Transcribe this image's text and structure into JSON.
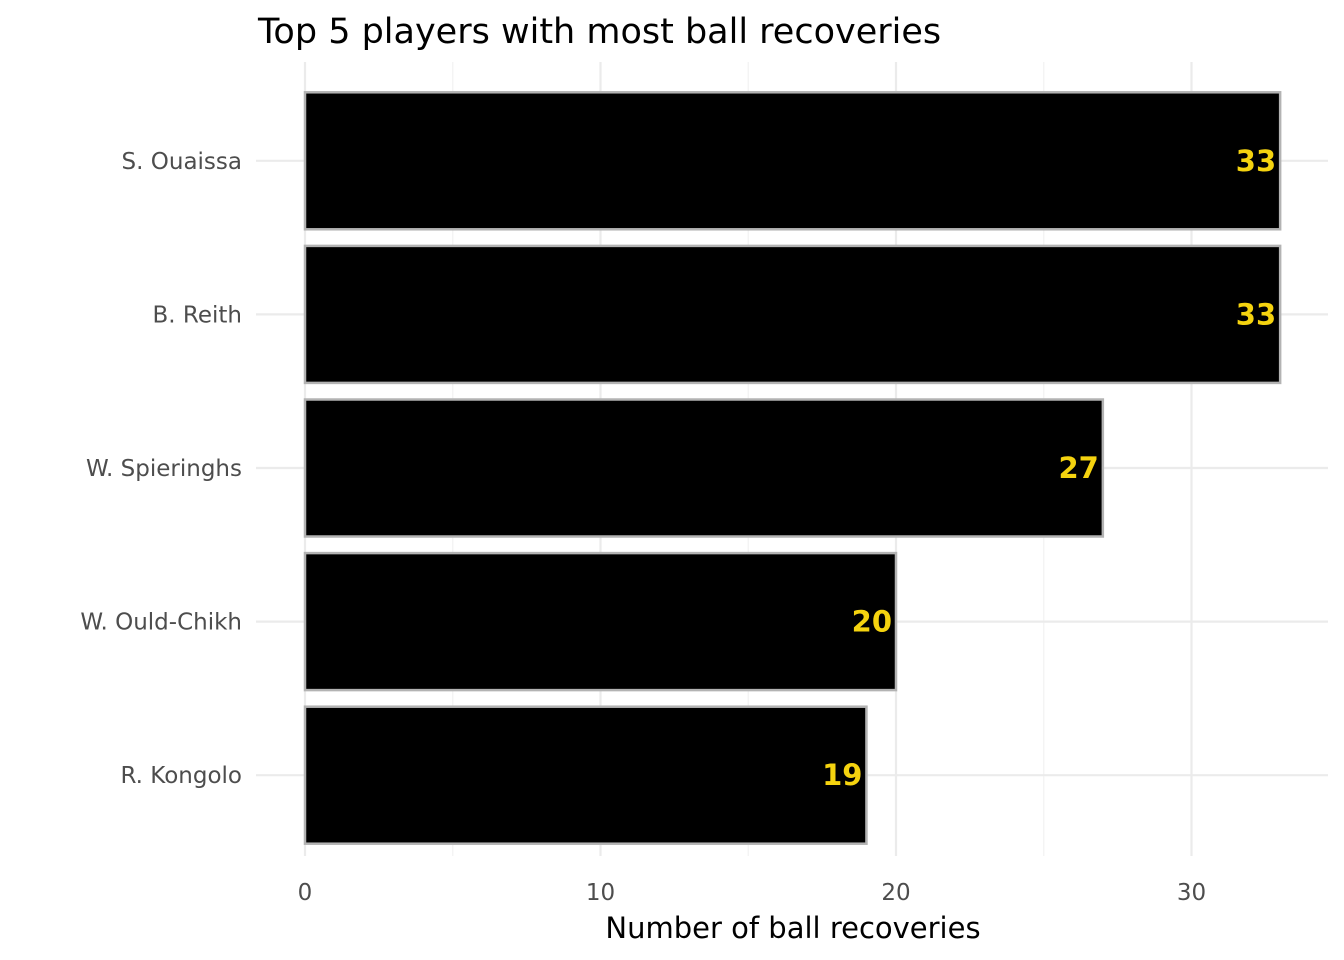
{
  "chart_data": {
    "type": "bar",
    "orientation": "horizontal",
    "title": "Top 5 players with most ball recoveries",
    "xlabel": "Number of ball recoveries",
    "ylabel": "",
    "categories": [
      "S. Ouaissa",
      "B. Reith",
      "W. Spieringhs",
      "W. Ould-Chikh",
      "R. Kongolo"
    ],
    "values": [
      33,
      33,
      27,
      20,
      19
    ],
    "value_labels": [
      "33",
      "33",
      "27",
      "20",
      "19"
    ],
    "xlim": [
      0,
      34.5
    ],
    "xticks": [
      0,
      10,
      20,
      30
    ],
    "xtick_labels": [
      "0",
      "10",
      "20",
      "30"
    ],
    "xminor": [
      5,
      15,
      25
    ],
    "grid": true,
    "bar_fill": "#000000",
    "bar_outline": "#b3b3b3",
    "label_color": "#f5d30f"
  }
}
